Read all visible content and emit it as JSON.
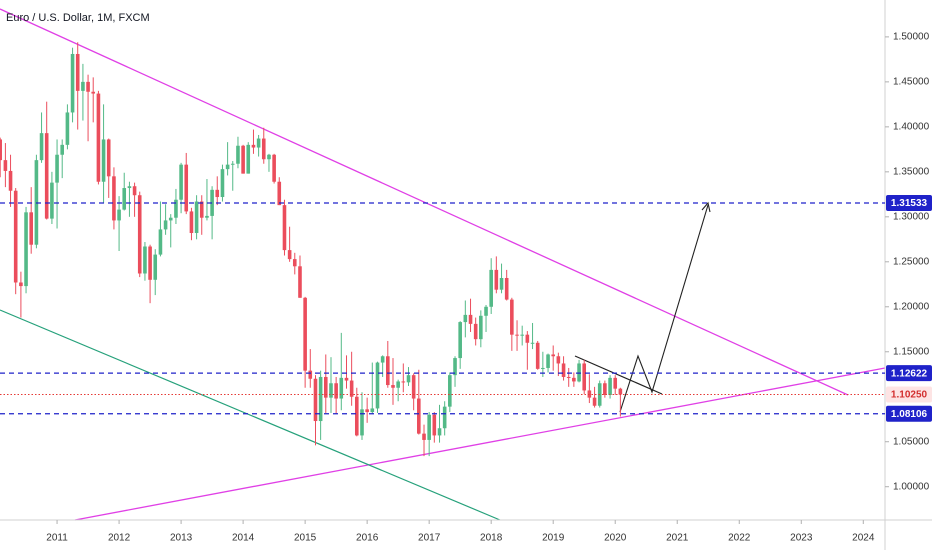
{
  "chart_data": {
    "type": "candlestick",
    "title": "Euro / U.S. Dollar, 1M, FXCM",
    "up_color": "#53b987",
    "down_color": "#eb4d5c",
    "x": [
      2010.083,
      2010.167,
      2010.25,
      2010.333,
      2010.417,
      2010.5,
      2010.583,
      2010.667,
      2010.75,
      2010.833,
      2010.917,
      2011,
      2011.083,
      2011.167,
      2011.25,
      2011.333,
      2011.417,
      2011.5,
      2011.583,
      2011.667,
      2011.75,
      2011.833,
      2011.917,
      2012,
      2012.083,
      2012.167,
      2012.25,
      2012.333,
      2012.417,
      2012.5,
      2012.583,
      2012.667,
      2012.75,
      2012.833,
      2012.917,
      2013,
      2013.083,
      2013.167,
      2013.25,
      2013.333,
      2013.417,
      2013.5,
      2013.583,
      2013.667,
      2013.75,
      2013.833,
      2013.917,
      2014,
      2014.083,
      2014.167,
      2014.25,
      2014.333,
      2014.417,
      2014.5,
      2014.583,
      2014.667,
      2014.75,
      2014.833,
      2014.917,
      2015,
      2015.083,
      2015.167,
      2015.25,
      2015.333,
      2015.417,
      2015.5,
      2015.583,
      2015.667,
      2015.75,
      2015.833,
      2015.917,
      2016,
      2016.083,
      2016.167,
      2016.25,
      2016.333,
      2016.417,
      2016.5,
      2016.583,
      2016.667,
      2016.75,
      2016.833,
      2016.917,
      2017,
      2017.083,
      2017.167,
      2017.25,
      2017.333,
      2017.417,
      2017.5,
      2017.583,
      2017.667,
      2017.75,
      2017.833,
      2017.917,
      2018,
      2018.083,
      2018.167,
      2018.25,
      2018.333,
      2018.417,
      2018.5,
      2018.583,
      2018.667,
      2018.75,
      2018.833,
      2018.917,
      2019,
      2019.083,
      2019.167,
      2019.25,
      2019.333,
      2019.417,
      2019.5,
      2019.583,
      2019.667,
      2019.75,
      2019.833,
      2019.917,
      2020,
      2020.083
    ],
    "open": [
      1.386,
      1.363,
      1.351,
      1.329,
      1.227,
      1.223,
      1.305,
      1.269,
      1.363,
      1.393,
      1.298,
      1.338,
      1.369,
      1.38,
      1.416,
      1.481,
      1.44,
      1.45,
      1.439,
      1.437,
      1.339,
      1.386,
      1.345,
      1.296,
      1.308,
      1.332,
      1.334,
      1.324,
      1.237,
      1.267,
      1.23,
      1.258,
      1.286,
      1.296,
      1.299,
      1.319,
      1.358,
      1.306,
      1.282,
      1.317,
      1.299,
      1.301,
      1.33,
      1.322,
      1.353,
      1.358,
      1.359,
      1.379,
      1.348,
      1.38,
      1.377,
      1.387,
      1.364,
      1.369,
      1.339,
      1.313,
      1.263,
      1.253,
      1.245,
      1.21,
      1.129,
      1.12,
      1.073,
      1.122,
      1.099,
      1.115,
      1.098,
      1.121,
      1.118,
      1.1,
      1.057,
      1.086,
      1.083,
      1.087,
      1.138,
      1.145,
      1.113,
      1.11,
      1.117,
      1.116,
      1.124,
      1.098,
      1.059,
      1.052,
      1.08,
      1.057,
      1.065,
      1.089,
      1.124,
      1.143,
      1.183,
      1.191,
      1.181,
      1.164,
      1.19,
      1.2,
      1.241,
      1.219,
      1.232,
      1.208,
      1.169,
      1.168,
      1.169,
      1.16,
      1.16,
      1.131,
      1.132,
      1.147,
      1.145,
      1.137,
      1.122,
      1.121,
      1.117,
      1.137,
      1.107,
      1.099,
      1.09,
      1.115,
      1.102,
      1.121,
      1.109
    ],
    "high": [
      1.388,
      1.382,
      1.369,
      1.332,
      1.239,
      1.311,
      1.333,
      1.369,
      1.416,
      1.428,
      1.35,
      1.386,
      1.386,
      1.425,
      1.488,
      1.494,
      1.47,
      1.458,
      1.455,
      1.44,
      1.425,
      1.387,
      1.355,
      1.323,
      1.349,
      1.339,
      1.338,
      1.328,
      1.272,
      1.269,
      1.264,
      1.317,
      1.314,
      1.303,
      1.331,
      1.36,
      1.371,
      1.31,
      1.324,
      1.324,
      1.342,
      1.334,
      1.345,
      1.358,
      1.383,
      1.362,
      1.389,
      1.38,
      1.383,
      1.397,
      1.391,
      1.399,
      1.37,
      1.37,
      1.344,
      1.319,
      1.289,
      1.26,
      1.257,
      1.211,
      1.153,
      1.124,
      1.129,
      1.147,
      1.144,
      1.122,
      1.171,
      1.146,
      1.15,
      1.11,
      1.105,
      1.099,
      1.138,
      1.139,
      1.146,
      1.162,
      1.143,
      1.119,
      1.137,
      1.133,
      1.126,
      1.13,
      1.069,
      1.083,
      1.083,
      1.091,
      1.095,
      1.127,
      1.145,
      1.184,
      1.207,
      1.209,
      1.188,
      1.196,
      1.202,
      1.254,
      1.256,
      1.248,
      1.241,
      1.21,
      1.185,
      1.179,
      1.173,
      1.182,
      1.162,
      1.15,
      1.148,
      1.157,
      1.149,
      1.145,
      1.132,
      1.127,
      1.141,
      1.141,
      1.125,
      1.111,
      1.118,
      1.118,
      1.124,
      1.124,
      1.11
    ],
    "low": [
      1.344,
      1.333,
      1.311,
      1.214,
      1.188,
      1.215,
      1.259,
      1.265,
      1.36,
      1.297,
      1.292,
      1.287,
      1.343,
      1.375,
      1.405,
      1.397,
      1.407,
      1.384,
      1.405,
      1.336,
      1.315,
      1.321,
      1.286,
      1.262,
      1.307,
      1.3,
      1.3,
      1.233,
      1.229,
      1.204,
      1.213,
      1.256,
      1.28,
      1.266,
      1.292,
      1.304,
      1.303,
      1.274,
      1.275,
      1.28,
      1.296,
      1.275,
      1.313,
      1.317,
      1.346,
      1.329,
      1.354,
      1.348,
      1.348,
      1.37,
      1.367,
      1.359,
      1.35,
      1.337,
      1.313,
      1.257,
      1.25,
      1.236,
      1.21,
      1.11,
      1.11,
      1.046,
      1.052,
      1.082,
      1.082,
      1.081,
      1.085,
      1.109,
      1.09,
      1.056,
      1.052,
      1.071,
      1.081,
      1.082,
      1.122,
      1.11,
      1.091,
      1.095,
      1.105,
      1.112,
      1.085,
      1.058,
      1.034,
      1.034,
      1.049,
      1.049,
      1.057,
      1.083,
      1.111,
      1.131,
      1.166,
      1.172,
      1.157,
      1.155,
      1.172,
      1.192,
      1.215,
      1.215,
      1.207,
      1.151,
      1.151,
      1.157,
      1.13,
      1.153,
      1.13,
      1.122,
      1.127,
      1.129,
      1.123,
      1.118,
      1.111,
      1.111,
      1.116,
      1.103,
      1.093,
      1.088,
      1.088,
      1.099,
      1.098,
      1.102,
      1.078
    ],
    "close": [
      1.363,
      1.351,
      1.329,
      1.227,
      1.223,
      1.305,
      1.269,
      1.363,
      1.393,
      1.298,
      1.338,
      1.369,
      1.38,
      1.416,
      1.481,
      1.44,
      1.45,
      1.439,
      1.437,
      1.339,
      1.386,
      1.345,
      1.296,
      1.308,
      1.332,
      1.334,
      1.324,
      1.237,
      1.267,
      1.23,
      1.258,
      1.286,
      1.296,
      1.299,
      1.319,
      1.358,
      1.306,
      1.282,
      1.317,
      1.299,
      1.301,
      1.33,
      1.322,
      1.353,
      1.358,
      1.359,
      1.379,
      1.348,
      1.38,
      1.377,
      1.387,
      1.364,
      1.369,
      1.339,
      1.313,
      1.263,
      1.253,
      1.245,
      1.21,
      1.129,
      1.12,
      1.073,
      1.122,
      1.099,
      1.115,
      1.098,
      1.121,
      1.118,
      1.1,
      1.057,
      1.086,
      1.083,
      1.087,
      1.138,
      1.145,
      1.113,
      1.11,
      1.117,
      1.116,
      1.124,
      1.098,
      1.059,
      1.052,
      1.08,
      1.057,
      1.065,
      1.089,
      1.124,
      1.143,
      1.183,
      1.191,
      1.181,
      1.164,
      1.19,
      1.2,
      1.241,
      1.219,
      1.232,
      1.208,
      1.169,
      1.168,
      1.169,
      1.16,
      1.16,
      1.131,
      1.132,
      1.147,
      1.145,
      1.137,
      1.122,
      1.121,
      1.117,
      1.137,
      1.107,
      1.099,
      1.09,
      1.115,
      1.102,
      1.121,
      1.109,
      1.1025
    ],
    "xlim": [
      2010.08,
      2024.35
    ],
    "ylim": [
      0.963,
      1.541
    ],
    "xticks": [
      2011,
      2012,
      2013,
      2014,
      2015,
      2016,
      2017,
      2018,
      2019,
      2020,
      2021,
      2022,
      2023,
      2024
    ],
    "yticks": [
      {
        "value": 1.0,
        "label": "1.00000"
      },
      {
        "value": 1.05,
        "label": "1.05000"
      },
      {
        "value": 1.15,
        "label": "1.15000"
      },
      {
        "value": 1.2,
        "label": "1.20000"
      },
      {
        "value": 1.25,
        "label": "1.25000"
      },
      {
        "value": 1.3,
        "label": "1.30000"
      },
      {
        "value": 1.35,
        "label": "1.35000"
      },
      {
        "value": 1.4,
        "label": "1.40000"
      },
      {
        "value": 1.45,
        "label": "1.45000"
      },
      {
        "value": 1.5,
        "label": "1.50000"
      }
    ],
    "price_lines": [
      {
        "value": 1.31533,
        "color": "#1f22c9",
        "style": "dashed",
        "text_color": "#ffffff"
      },
      {
        "value": 1.12622,
        "color": "#1f22c9",
        "style": "dashed",
        "text_color": "#ffffff"
      },
      {
        "value": 1.1025,
        "label": "1.10250",
        "color": "#e53935",
        "style": "dotted",
        "badge_color": "#fde4e4",
        "text_color": "#d32f2f"
      },
      {
        "value": 1.08106,
        "color": "#1f22c9",
        "style": "dashed",
        "text_color": "#ffffff"
      }
    ]
  }
}
